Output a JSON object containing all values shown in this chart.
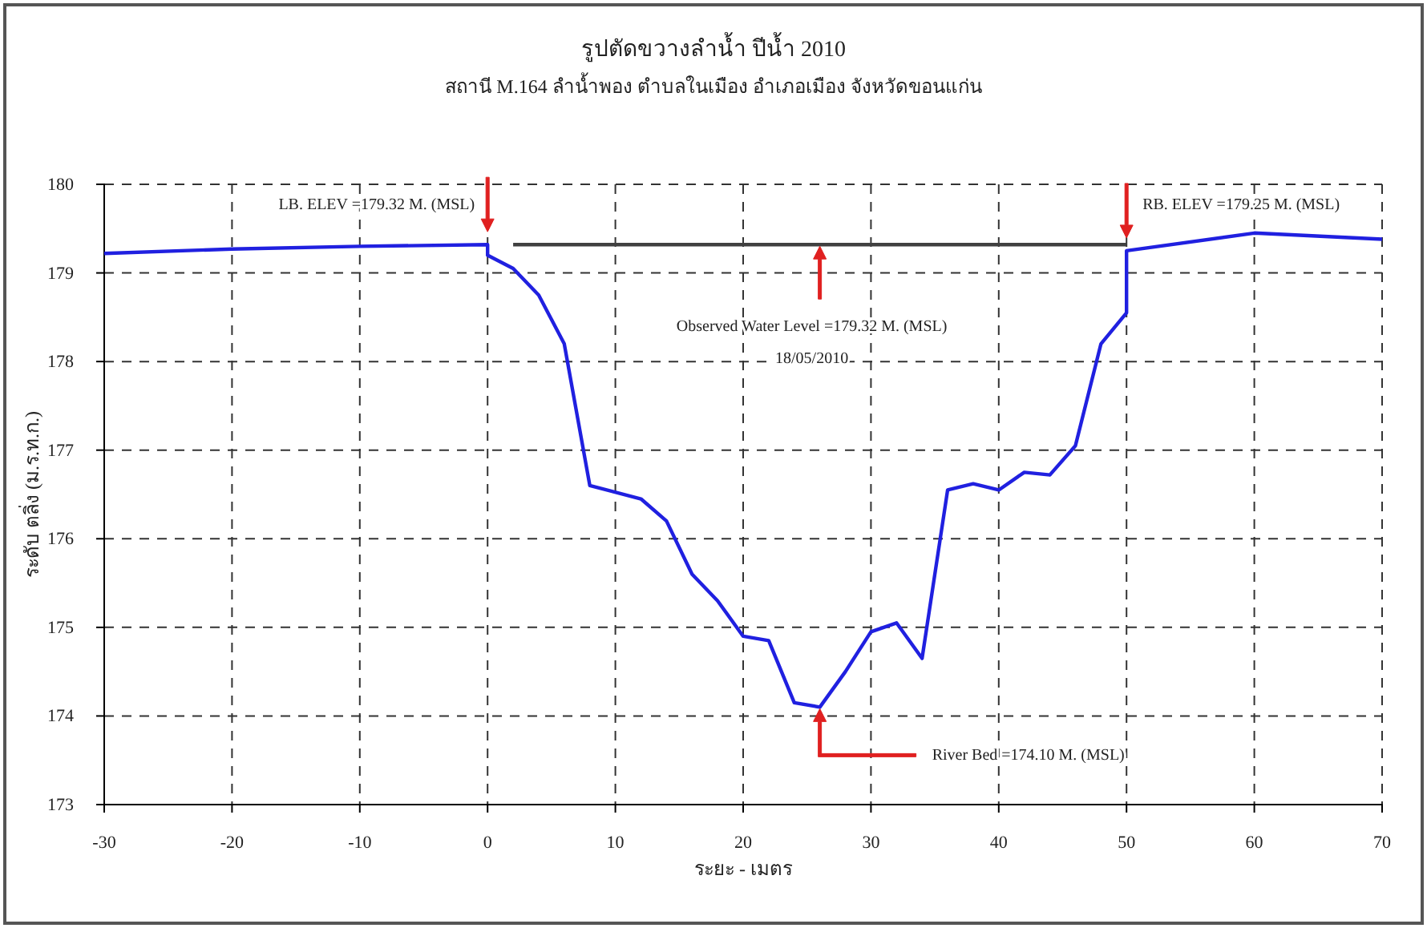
{
  "chart_data": {
    "type": "line",
    "title": "รูปตัดขวางลำน้ำ ปีน้ำ 2010",
    "subtitle": "สถานี M.164 ลำน้ำพอง ตำบลในเมือง อำเภอเมือง จังหวัดขอนแก่น",
    "xlabel": "ระยะ - เมตร",
    "ylabel": "ระดับ ตลิ่ง (ม.ร.ท.ก.)",
    "xlim": [
      -30,
      70
    ],
    "xticks": [
      -30,
      -20,
      -10,
      0,
      10,
      20,
      30,
      40,
      50,
      60,
      70
    ],
    "ylim": [
      173,
      180
    ],
    "yticks": [
      173,
      174,
      175,
      176,
      177,
      178,
      179,
      180
    ],
    "grid": true,
    "marker": "none",
    "line_style": "solid",
    "series": [
      {
        "color": "#2020e0",
        "x": [
          -30,
          -20,
          -10,
          0,
          0,
          2,
          4,
          6,
          8,
          12,
          14,
          16,
          18,
          20,
          22,
          24,
          26,
          28,
          30,
          32,
          34,
          36,
          38,
          40,
          42,
          44,
          46,
          48,
          50,
          50,
          60,
          70
        ],
        "values": [
          179.22,
          179.27,
          179.3,
          179.32,
          179.2,
          179.05,
          178.75,
          178.2,
          176.6,
          176.45,
          176.2,
          175.6,
          175.3,
          174.9,
          174.85,
          174.15,
          174.1,
          174.5,
          174.95,
          175.05,
          174.65,
          176.55,
          176.62,
          176.55,
          176.75,
          176.72,
          177.05,
          178.2,
          178.55,
          179.25,
          179.45,
          179.38
        ]
      },
      {
        "color": "#404040",
        "x": [
          2,
          50
        ],
        "values": [
          179.32,
          179.32
        ]
      }
    ],
    "annotations": [
      {
        "text": "LB. ELEV =179.32 M. (MSL)",
        "x": 0,
        "y": 179.32
      },
      {
        "text": "RB. ELEV =179.25 M. (MSL)",
        "x": 50,
        "y": 179.25
      },
      "Observed Water Level =179.32 M. (MSL)",
      "18/05/2010",
      "River Bed =174.10 M. (MSL)"
    ]
  }
}
